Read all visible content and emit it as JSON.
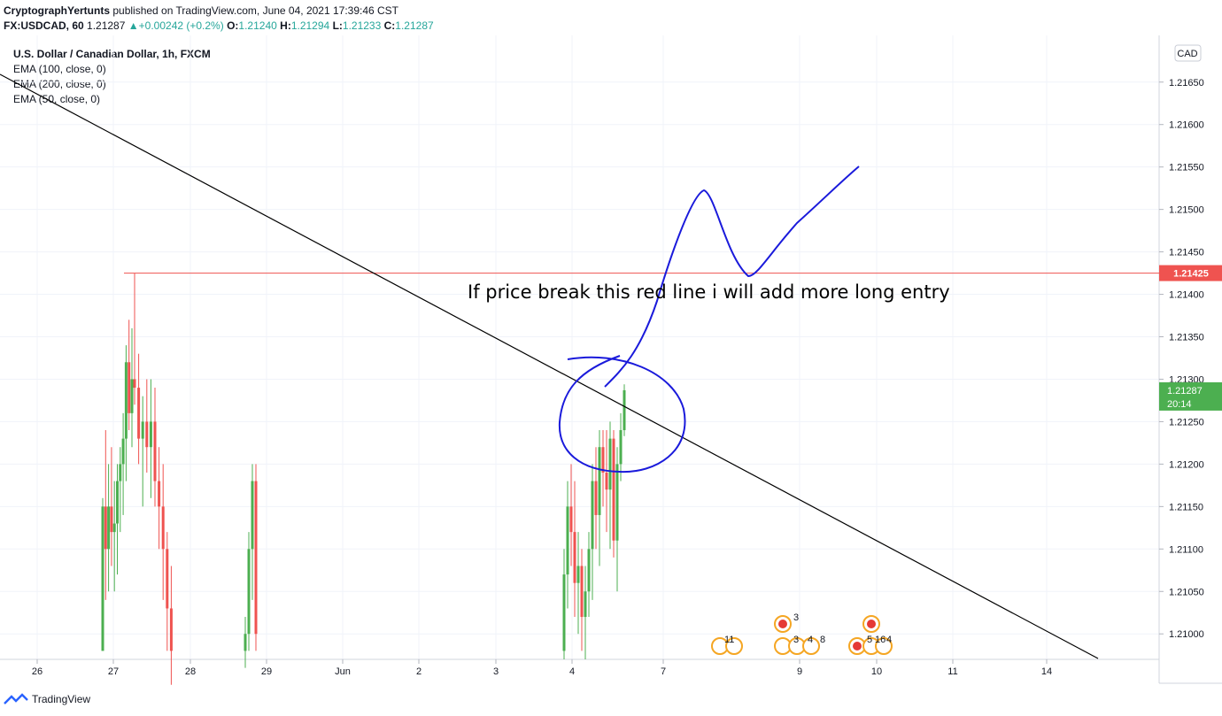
{
  "header": {
    "author": "CryptographYertunts",
    "published": " published on TradingView.com, June 04, 2021 17:39:46 CST",
    "symbol": "FX:USDCAD, 60",
    "last": "1.21287",
    "change": "+0.00242 (+0.2%)",
    "o_label": "O:",
    "o": "1.21240",
    "h_label": "H:",
    "h": "1.21294",
    "l_label": "L:",
    "l": "1.21233",
    "c_label": "C:",
    "c": "1.21287"
  },
  "legend": {
    "title": "U.S. Dollar / Canadian Dollar, 1h, FXCM",
    "items": [
      "EMA (100, close, 0)",
      "EMA (200, close, 0)",
      "EMA (50, close, 0)"
    ]
  },
  "currency_badge": "CAD",
  "price_labels": {
    "red_line": "1.21425",
    "last_price": "1.21287",
    "countdown": "20:14"
  },
  "annotation": "If price break this red line i will add more long entry",
  "footer": {
    "brand": "TradingView"
  },
  "colors": {
    "up": "#4caf50",
    "down": "#ef5350",
    "resistance": "#ef5350",
    "drawing": "#1a1adb",
    "trend": "#000000"
  },
  "chart_data": {
    "type": "candlestick",
    "ylim": [
      1.2097,
      1.21705
    ],
    "yticks": [
      1.21,
      1.2105,
      1.211,
      1.2115,
      1.212,
      1.2125,
      1.213,
      1.2135,
      1.214,
      1.2145,
      1.215,
      1.2155,
      1.216,
      1.2165
    ],
    "xticks": [
      "26",
      "27",
      "28",
      "29",
      "Jun",
      "2",
      "3",
      "4",
      "7",
      "9",
      "10",
      "11",
      "14"
    ],
    "resistance_level": 1.21425,
    "last_price": 1.21287,
    "candles": [
      {
        "o": 1.2098,
        "h": 1.2116,
        "l": 1.2098,
        "c": 1.2115
      },
      {
        "o": 1.2115,
        "h": 1.2124,
        "l": 1.2104,
        "c": 1.211
      },
      {
        "o": 1.211,
        "h": 1.212,
        "l": 1.2105,
        "c": 1.2115
      },
      {
        "o": 1.2115,
        "h": 1.2122,
        "l": 1.2108,
        "c": 1.2112
      },
      {
        "o": 1.2112,
        "h": 1.2118,
        "l": 1.2105,
        "c": 1.2113
      },
      {
        "o": 1.2113,
        "h": 1.212,
        "l": 1.2107,
        "c": 1.2118
      },
      {
        "o": 1.2118,
        "h": 1.2122,
        "l": 1.2112,
        "c": 1.212
      },
      {
        "o": 1.212,
        "h": 1.2126,
        "l": 1.2114,
        "c": 1.2123
      },
      {
        "o": 1.2123,
        "h": 1.2134,
        "l": 1.2118,
        "c": 1.2132
      },
      {
        "o": 1.2132,
        "h": 1.2137,
        "l": 1.2124,
        "c": 1.2126
      },
      {
        "o": 1.2126,
        "h": 1.2136,
        "l": 1.2122,
        "c": 1.213
      },
      {
        "o": 1.213,
        "h": 1.21425,
        "l": 1.2127,
        "c": 1.2129
      },
      {
        "o": 1.2129,
        "h": 1.2133,
        "l": 1.212,
        "c": 1.2123
      },
      {
        "o": 1.2123,
        "h": 1.2128,
        "l": 1.2115,
        "c": 1.2125
      },
      {
        "o": 1.2125,
        "h": 1.213,
        "l": 1.2119,
        "c": 1.2122
      },
      {
        "o": 1.2122,
        "h": 1.213,
        "l": 1.2116,
        "c": 1.2125
      },
      {
        "o": 1.2125,
        "h": 1.2129,
        "l": 1.2115,
        "c": 1.2118
      },
      {
        "o": 1.2118,
        "h": 1.2122,
        "l": 1.211,
        "c": 1.2115
      },
      {
        "o": 1.2115,
        "h": 1.212,
        "l": 1.2104,
        "c": 1.211
      },
      {
        "o": 1.211,
        "h": 1.2112,
        "l": 1.2098,
        "c": 1.2103
      },
      {
        "o": 1.2103,
        "h": 1.2108,
        "l": 1.2094,
        "c": 1.2098
      },
      {
        "o": 1.2098,
        "h": 1.2102,
        "l": 1.2096,
        "c": 1.21
      },
      {
        "o": 1.21,
        "h": 1.2112,
        "l": 1.2098,
        "c": 1.211
      },
      {
        "o": 1.211,
        "h": 1.212,
        "l": 1.2104,
        "c": 1.2118
      },
      {
        "o": 1.2118,
        "h": 1.212,
        "l": 1.2098,
        "c": 1.21
      },
      {
        "o": 1.2098,
        "h": 1.211,
        "l": 1.2097,
        "c": 1.2107
      },
      {
        "o": 1.2107,
        "h": 1.2118,
        "l": 1.2103,
        "c": 1.2115
      },
      {
        "o": 1.2115,
        "h": 1.212,
        "l": 1.2108,
        "c": 1.2112
      },
      {
        "o": 1.2112,
        "h": 1.2118,
        "l": 1.2102,
        "c": 1.2106
      },
      {
        "o": 1.2106,
        "h": 1.2112,
        "l": 1.21,
        "c": 1.2108
      },
      {
        "o": 1.2108,
        "h": 1.211,
        "l": 1.2098,
        "c": 1.2102
      },
      {
        "o": 1.2102,
        "h": 1.2108,
        "l": 1.2097,
        "c": 1.2105
      },
      {
        "o": 1.2105,
        "h": 1.2112,
        "l": 1.2102,
        "c": 1.211
      },
      {
        "o": 1.211,
        "h": 1.212,
        "l": 1.2104,
        "c": 1.2118
      },
      {
        "o": 1.2118,
        "h": 1.2122,
        "l": 1.211,
        "c": 1.2114
      },
      {
        "o": 1.2114,
        "h": 1.2124,
        "l": 1.2108,
        "c": 1.2122
      },
      {
        "o": 1.2122,
        "h": 1.2124,
        "l": 1.2115,
        "c": 1.2119
      },
      {
        "o": 1.2119,
        "h": 1.2124,
        "l": 1.2112,
        "c": 1.2117
      },
      {
        "o": 1.2117,
        "h": 1.2125,
        "l": 1.211,
        "c": 1.2123
      },
      {
        "o": 1.2123,
        "h": 1.2124,
        "l": 1.2109,
        "c": 1.2111
      },
      {
        "o": 1.2111,
        "h": 1.2122,
        "l": 1.2105,
        "c": 1.212
      },
      {
        "o": 1.212,
        "h": 1.2126,
        "l": 1.2118,
        "c": 1.2124
      },
      {
        "o": 1.2124,
        "h": 1.21294,
        "l": 1.21233,
        "c": 1.21287
      }
    ]
  }
}
